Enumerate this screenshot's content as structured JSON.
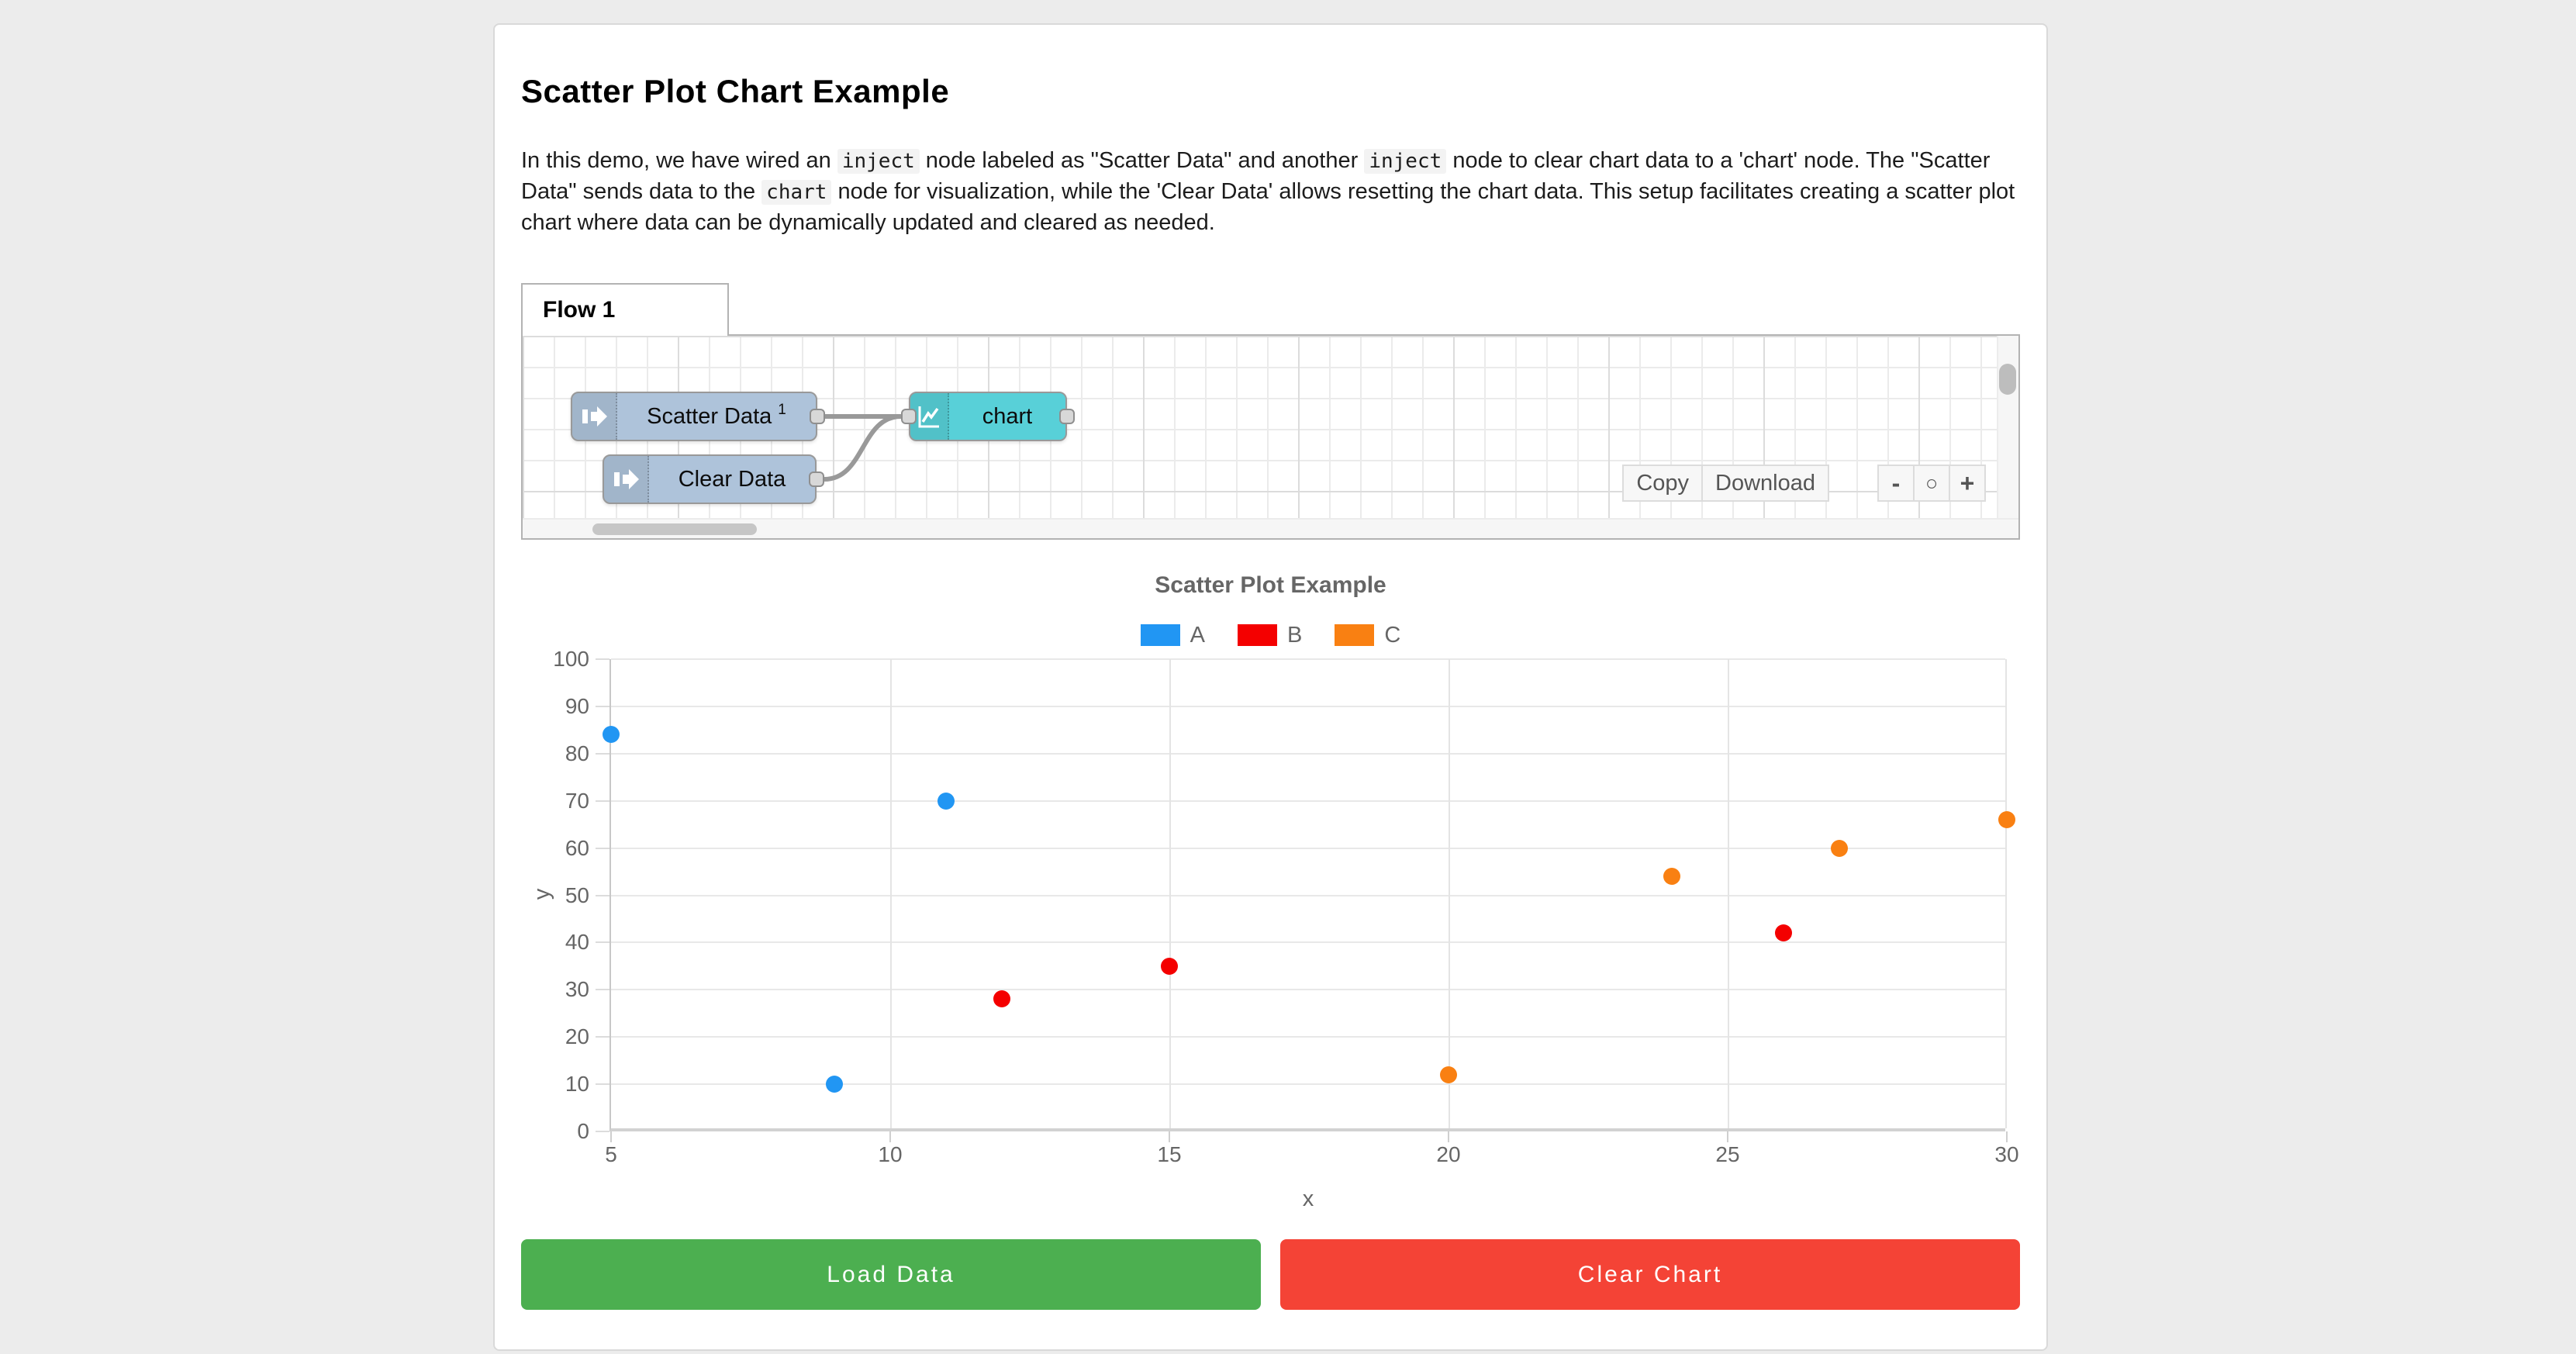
{
  "page": {
    "title": "Scatter Plot Chart Example"
  },
  "intro": {
    "segments": [
      {
        "type": "text",
        "text": "In this demo, we have wired an "
      },
      {
        "type": "code",
        "text": "inject"
      },
      {
        "type": "text",
        "text": " node labeled as \"Scatter Data\" and another "
      },
      {
        "type": "code",
        "text": "inject"
      },
      {
        "type": "text",
        "text": " node to clear chart data to a 'chart' node. The \"Scatter Data\" sends data to the "
      },
      {
        "type": "code",
        "text": "chart"
      },
      {
        "type": "text",
        "text": " node for visualization, while the 'Clear Data' allows resetting the chart data. This setup facilitates creating a scatter plot chart where data can be dynamically updated and cleared as needed."
      }
    ]
  },
  "flow_editor": {
    "tab_label": "Flow 1",
    "nodes": {
      "scatter_inject": {
        "label": "Scatter Data",
        "superscript": "1",
        "color": "#aec3da"
      },
      "clear_inject": {
        "label": "Clear Data",
        "color": "#aec3da"
      },
      "chart_node": {
        "label": "chart",
        "color": "#58d0d8"
      }
    },
    "toolbar": {
      "copy_label": "Copy",
      "download_label": "Download",
      "zoom_out_label": "-",
      "zoom_reset_label": "○",
      "zoom_in_label": "+"
    }
  },
  "chart_data": {
    "type": "scatter",
    "title": "Scatter Plot Example",
    "xlabel": "x",
    "ylabel": "y",
    "xlim": [
      5,
      30
    ],
    "ylim": [
      0,
      100
    ],
    "xticks": [
      5,
      10,
      15,
      20,
      25,
      30
    ],
    "yticks": [
      0,
      10,
      20,
      30,
      40,
      50,
      60,
      70,
      80,
      90,
      100
    ],
    "grid": true,
    "legend_position": "top",
    "series": [
      {
        "name": "A",
        "color": "#2196f3",
        "points": [
          [
            5,
            84
          ],
          [
            9,
            10
          ],
          [
            11,
            70
          ]
        ]
      },
      {
        "name": "B",
        "color": "#f40000",
        "points": [
          [
            12,
            28
          ],
          [
            15,
            35
          ],
          [
            26,
            42
          ]
        ]
      },
      {
        "name": "C",
        "color": "#f98012",
        "points": [
          [
            20,
            12
          ],
          [
            24,
            54
          ],
          [
            27,
            60
          ],
          [
            30,
            66
          ]
        ]
      }
    ]
  },
  "actions": {
    "load_label": "Load Data",
    "load_color": "#4caf50",
    "clear_label": "Clear Chart",
    "clear_color": "#f44336"
  }
}
